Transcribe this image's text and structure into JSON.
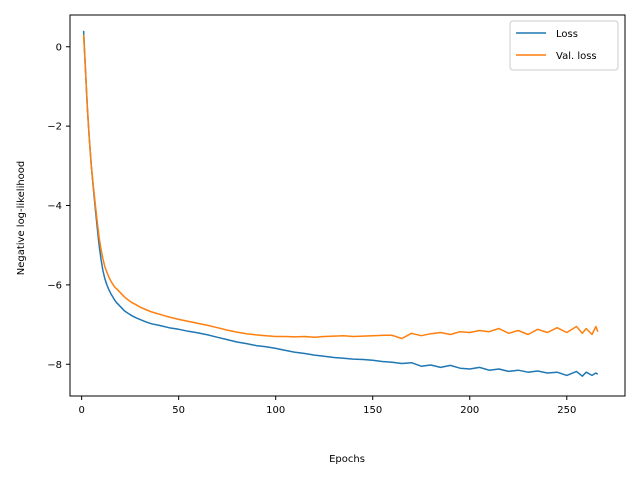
{
  "chart_data": {
    "type": "line",
    "title": "",
    "xlabel": "Epochs",
    "ylabel": "Negative log-likelihood",
    "xlim": [
      -6,
      280
    ],
    "ylim": [
      -8.8,
      0.8
    ],
    "xticks": [
      0,
      50,
      100,
      150,
      200,
      250
    ],
    "yticks": [
      0,
      -2,
      -4,
      -6,
      -8
    ],
    "xtick_labels": [
      "0",
      "50",
      "100",
      "150",
      "200",
      "250"
    ],
    "ytick_labels": [
      "0",
      "−2",
      "−4",
      "−6",
      "−8"
    ],
    "grid": false,
    "legend_position": "top-right",
    "series": [
      {
        "name": "Loss",
        "color": "#1f77b4",
        "x": [
          1,
          2,
          3,
          4,
          5,
          6,
          7,
          8,
          9,
          10,
          11,
          12,
          13,
          14,
          15,
          16,
          17,
          18,
          20,
          22,
          24,
          26,
          28,
          30,
          33,
          36,
          40,
          45,
          50,
          55,
          60,
          65,
          70,
          75,
          80,
          85,
          90,
          95,
          100,
          105,
          110,
          115,
          120,
          125,
          130,
          135,
          140,
          145,
          150,
          155,
          160,
          165,
          170,
          175,
          180,
          185,
          190,
          195,
          200,
          205,
          210,
          215,
          220,
          225,
          230,
          235,
          240,
          245,
          250,
          255,
          258,
          260,
          263,
          265,
          266
        ],
        "y": [
          0.4,
          -0.6,
          -1.6,
          -2.35,
          -3.0,
          -3.55,
          -4.05,
          -4.55,
          -5.0,
          -5.35,
          -5.65,
          -5.85,
          -6.0,
          -6.12,
          -6.22,
          -6.3,
          -6.38,
          -6.45,
          -6.55,
          -6.65,
          -6.72,
          -6.78,
          -6.83,
          -6.87,
          -6.93,
          -6.98,
          -7.02,
          -7.08,
          -7.12,
          -7.17,
          -7.21,
          -7.26,
          -7.32,
          -7.38,
          -7.44,
          -7.48,
          -7.53,
          -7.56,
          -7.6,
          -7.65,
          -7.7,
          -7.73,
          -7.77,
          -7.8,
          -7.83,
          -7.85,
          -7.87,
          -7.88,
          -7.9,
          -7.93,
          -7.95,
          -7.98,
          -7.96,
          -8.05,
          -8.02,
          -8.08,
          -8.03,
          -8.1,
          -8.12,
          -8.08,
          -8.15,
          -8.12,
          -8.18,
          -8.15,
          -8.2,
          -8.17,
          -8.22,
          -8.2,
          -8.28,
          -8.18,
          -8.3,
          -8.2,
          -8.28,
          -8.22,
          -8.25
        ]
      },
      {
        "name": "Val. loss",
        "color": "#ff7f0e",
        "x": [
          1,
          2,
          3,
          4,
          5,
          6,
          7,
          8,
          9,
          10,
          11,
          12,
          13,
          14,
          15,
          16,
          17,
          18,
          20,
          22,
          24,
          26,
          28,
          30,
          33,
          36,
          40,
          45,
          50,
          55,
          60,
          65,
          70,
          75,
          80,
          85,
          90,
          95,
          100,
          105,
          110,
          115,
          120,
          125,
          130,
          135,
          140,
          145,
          150,
          155,
          160,
          165,
          170,
          175,
          180,
          185,
          190,
          195,
          200,
          205,
          210,
          215,
          220,
          225,
          230,
          235,
          240,
          245,
          250,
          255,
          258,
          260,
          263,
          265,
          266
        ],
        "y": [
          0.3,
          -0.6,
          -1.6,
          -2.35,
          -3.0,
          -3.5,
          -3.95,
          -4.4,
          -4.8,
          -5.1,
          -5.35,
          -5.55,
          -5.68,
          -5.8,
          -5.9,
          -5.98,
          -6.05,
          -6.1,
          -6.2,
          -6.3,
          -6.38,
          -6.45,
          -6.5,
          -6.56,
          -6.62,
          -6.68,
          -6.74,
          -6.81,
          -6.87,
          -6.92,
          -6.97,
          -7.02,
          -7.08,
          -7.14,
          -7.19,
          -7.23,
          -7.26,
          -7.28,
          -7.3,
          -7.3,
          -7.31,
          -7.3,
          -7.32,
          -7.3,
          -7.29,
          -7.28,
          -7.3,
          -7.29,
          -7.28,
          -7.27,
          -7.27,
          -7.35,
          -7.22,
          -7.28,
          -7.23,
          -7.2,
          -7.25,
          -7.18,
          -7.2,
          -7.15,
          -7.18,
          -7.1,
          -7.22,
          -7.15,
          -7.25,
          -7.12,
          -7.2,
          -7.08,
          -7.2,
          -7.05,
          -7.22,
          -7.1,
          -7.25,
          -7.05,
          -7.18
        ]
      }
    ]
  }
}
